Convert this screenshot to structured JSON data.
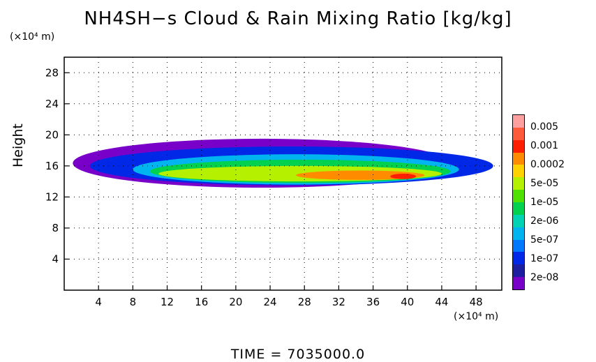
{
  "chart_data": {
    "type": "heatmap",
    "title": "NH4SH−s Cloud & Rain Mixing Ratio [kg/kg]",
    "ylabel": "Height",
    "x_unit": "(×10⁴ m)",
    "y_unit": "(×10⁴ m)",
    "xlim": [
      0,
      51
    ],
    "ylim": [
      0,
      30
    ],
    "x_ticks": [
      4,
      8,
      12,
      16,
      20,
      24,
      28,
      32,
      36,
      40,
      44,
      48
    ],
    "y_ticks": [
      4,
      8,
      12,
      16,
      20,
      24,
      28
    ],
    "grid": true,
    "footer": "TIME  =  7035000.0",
    "colorbar": {
      "labels": [
        "0.005",
        "0.001",
        "0.0002",
        "5e-05",
        "1e-05",
        "2e-06",
        "5e-07",
        "1e-07",
        "2e-08"
      ],
      "colors": [
        "#ffa0a0",
        "#ff5a3c",
        "#ff1e00",
        "#ff8c00",
        "#ffd200",
        "#b4f000",
        "#50e100",
        "#00d250",
        "#00d2b4",
        "#00b4f0",
        "#0078ff",
        "#0028e6",
        "#1e1ea0",
        "#7800c8"
      ]
    },
    "cloud_layers": [
      {
        "level": 13,
        "x": [
          1,
          45
        ],
        "y": [
          13.2,
          19.5
        ]
      },
      {
        "level": 11,
        "x": [
          3,
          50
        ],
        "y": [
          13.5,
          18.5
        ]
      },
      {
        "level": 9,
        "x": [
          8,
          46
        ],
        "y": [
          13.6,
          17.5
        ]
      },
      {
        "level": 7,
        "x": [
          10,
          45
        ],
        "y": [
          13.8,
          16.8
        ]
      },
      {
        "level": 5,
        "x": [
          11,
          44
        ],
        "y": [
          14.0,
          16.0
        ]
      },
      {
        "level": 3,
        "x": [
          27,
          42
        ],
        "y": [
          14.2,
          15.4
        ]
      },
      {
        "level": 2,
        "x": [
          38,
          41
        ],
        "y": [
          14.3,
          15.0
        ]
      }
    ]
  }
}
